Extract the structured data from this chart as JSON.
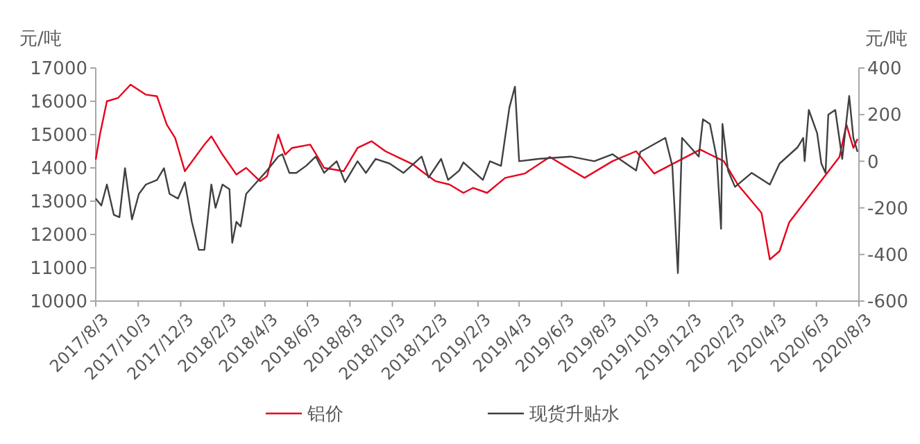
{
  "chart_data": {
    "type": "line",
    "ylabel": "元/吨",
    "y2label": "元/吨",
    "xlim": [
      "2017-08-03",
      "2020-08-03"
    ],
    "xticks": [
      {
        "value": "2017-08-03",
        "label": "2017/8/3"
      },
      {
        "value": "2017-10-03",
        "label": "2017/10/3"
      },
      {
        "value": "2017-12-03",
        "label": "2017/12/3"
      },
      {
        "value": "2018-02-03",
        "label": "2018/2/3"
      },
      {
        "value": "2018-04-03",
        "label": "2018/4/3"
      },
      {
        "value": "2018-06-03",
        "label": "2018/6/3"
      },
      {
        "value": "2018-08-03",
        "label": "2018/8/3"
      },
      {
        "value": "2018-10-03",
        "label": "2018/10/3"
      },
      {
        "value": "2018-12-03",
        "label": "2018/12/3"
      },
      {
        "value": "2019-02-03",
        "label": "2019/2/3"
      },
      {
        "value": "2019-04-03",
        "label": "2019/4/3"
      },
      {
        "value": "2019-06-03",
        "label": "2019/6/3"
      },
      {
        "value": "2019-08-03",
        "label": "2019/8/3"
      },
      {
        "value": "2019-10-03",
        "label": "2019/10/3"
      },
      {
        "value": "2019-12-03",
        "label": "2019/12/3"
      },
      {
        "value": "2020-02-03",
        "label": "2020/2/3"
      },
      {
        "value": "2020-04-03",
        "label": "2020/4/3"
      },
      {
        "value": "2020-06-03",
        "label": "2020/6/3"
      },
      {
        "value": "2020-08-03",
        "label": "2020/8/3"
      }
    ],
    "ylim": [
      10000,
      17000
    ],
    "yticks": [
      10000,
      11000,
      12000,
      13000,
      14000,
      15000,
      16000,
      17000
    ],
    "y2lim": [
      -600,
      400
    ],
    "y2ticks": [
      -600,
      -400,
      -200,
      0,
      200,
      400
    ],
    "grid": false,
    "legend": "bottom",
    "series": [
      {
        "name": "铝价",
        "color": "#e8001c",
        "x": [
          "2017-08-03",
          "2017-08-09",
          "2017-08-19",
          "2017-09-04",
          "2017-09-22",
          "2017-10-14",
          "2017-10-30",
          "2017-11-13",
          "2017-11-25",
          "2017-12-09",
          "2018-01-06",
          "2018-01-16",
          "2018-02-01",
          "2018-02-21",
          "2018-03-07",
          "2018-03-27",
          "2018-04-06",
          "2018-04-22",
          "2018-05-02",
          "2018-05-12",
          "2018-06-07",
          "2018-06-27",
          "2018-07-25",
          "2018-08-14",
          "2018-09-03",
          "2018-09-23",
          "2018-10-13",
          "2018-11-02",
          "2018-11-14",
          "2018-12-04",
          "2018-12-24",
          "2019-01-13",
          "2019-01-27",
          "2019-02-16",
          "2019-03-14",
          "2019-04-11",
          "2019-05-17",
          "2019-07-06",
          "2019-08-15",
          "2019-09-18",
          "2019-10-14",
          "2019-12-19",
          "2020-01-22",
          "2020-02-11",
          "2020-03-16",
          "2020-03-28",
          "2020-04-11",
          "2020-04-25",
          "2020-05-21",
          "2020-06-10",
          "2020-07-06",
          "2020-07-16",
          "2020-07-26",
          "2020-08-01"
        ],
        "values": [
          14250,
          15000,
          16000,
          16100,
          16500,
          16200,
          16150,
          15300,
          14900,
          13900,
          14700,
          14950,
          14400,
          13800,
          14000,
          13600,
          13750,
          15000,
          14400,
          14600,
          14700,
          14000,
          13900,
          14600,
          14800,
          14500,
          14300,
          14100,
          13900,
          13600,
          13500,
          13250,
          13400,
          13250,
          13700,
          13830,
          14330,
          13700,
          14200,
          14500,
          13830,
          14550,
          14200,
          13500,
          12650,
          11250,
          11500,
          12370,
          13080,
          13620,
          14330,
          15300,
          14600,
          14870
        ]
      },
      {
        "name": "现货升贴水",
        "color": "#404040",
        "axis": "y2",
        "x": [
          "2017-08-03",
          "2017-08-11",
          "2017-08-19",
          "2017-08-29",
          "2017-09-06",
          "2017-09-14",
          "2017-09-24",
          "2017-10-04",
          "2017-10-14",
          "2017-10-30",
          "2017-11-09",
          "2017-11-17",
          "2017-11-29",
          "2017-12-09",
          "2017-12-19",
          "2017-12-29",
          "2018-01-06",
          "2018-01-16",
          "2018-01-22",
          "2018-02-01",
          "2018-02-11",
          "2018-02-15",
          "2018-02-21",
          "2018-02-27",
          "2018-03-07",
          "2018-03-19",
          "2018-04-06",
          "2018-04-22",
          "2018-04-28",
          "2018-05-08",
          "2018-05-18",
          "2018-06-01",
          "2018-06-15",
          "2018-06-27",
          "2018-07-15",
          "2018-07-27",
          "2018-08-14",
          "2018-08-26",
          "2018-09-09",
          "2018-09-29",
          "2018-10-19",
          "2018-11-14",
          "2018-11-24",
          "2018-12-12",
          "2018-12-22",
          "2019-01-07",
          "2019-01-13",
          "2019-02-10",
          "2019-02-20",
          "2019-03-08",
          "2019-03-20",
          "2019-03-28",
          "2019-04-03",
          "2019-05-01",
          "2019-06-16",
          "2019-07-20",
          "2019-08-15",
          "2019-09-18",
          "2019-09-24",
          "2019-10-30",
          "2019-11-09",
          "2019-11-17",
          "2019-11-23",
          "2019-12-17",
          "2019-12-23",
          "2020-01-02",
          "2020-01-12",
          "2020-01-18",
          "2020-01-20",
          "2020-01-28",
          "2020-02-07",
          "2020-03-02",
          "2020-03-28",
          "2020-04-11",
          "2020-05-07",
          "2020-05-15",
          "2020-05-17",
          "2020-05-23",
          "2020-06-04",
          "2020-06-10",
          "2020-06-16",
          "2020-06-20",
          "2020-06-30",
          "2020-07-10",
          "2020-07-20",
          "2020-07-26",
          "2020-08-01"
        ],
        "values": [
          -160,
          -190,
          -100,
          -230,
          -240,
          -30,
          -250,
          -140,
          -100,
          -80,
          -30,
          -140,
          -160,
          -90,
          -260,
          -380,
          -380,
          -100,
          -200,
          -100,
          -120,
          -350,
          -260,
          -280,
          -140,
          -100,
          -40,
          20,
          30,
          -50,
          -50,
          -20,
          20,
          -50,
          0,
          -90,
          0,
          -50,
          10,
          -10,
          -50,
          20,
          -70,
          10,
          -80,
          -40,
          -5,
          -80,
          0,
          -20,
          230,
          320,
          0,
          10,
          20,
          0,
          30,
          -40,
          40,
          100,
          -20,
          -480,
          100,
          20,
          180,
          160,
          10,
          -290,
          160,
          -40,
          -110,
          -50,
          -100,
          -10,
          60,
          100,
          0,
          220,
          120,
          -10,
          -50,
          200,
          220,
          10,
          280,
          100,
          40
        ]
      }
    ]
  }
}
